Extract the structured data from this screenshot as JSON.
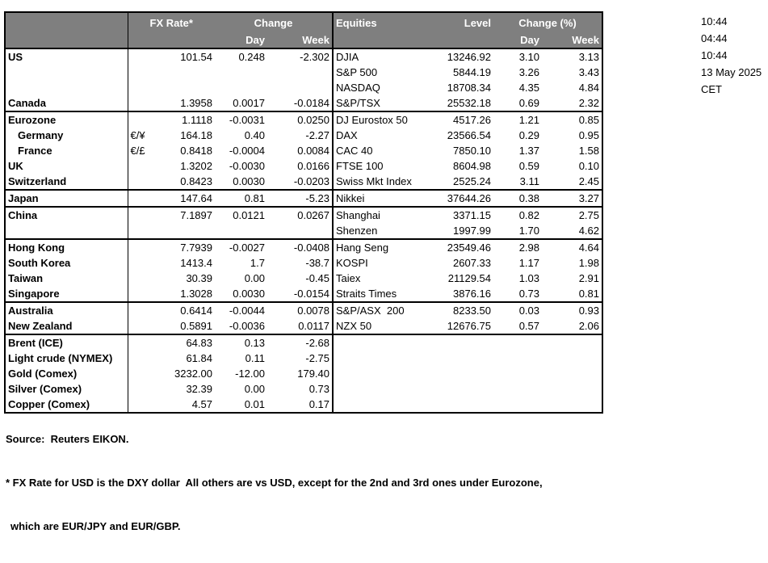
{
  "header": {
    "fx_rate": "FX Rate*",
    "change": "Change",
    "day": "Day",
    "week": "Week",
    "equities": "Equities",
    "level": "Level",
    "change_pct": "Change (%)"
  },
  "colors": {
    "header_bg": "#7f7f7f",
    "header_text": "#ffffff",
    "border": "#000000"
  },
  "rows": [
    {
      "name": "US",
      "sym": "",
      "fx": "101.54",
      "fx_day": "0.248",
      "fx_week": "-2.302",
      "equity": "DJIA",
      "level": "13246.92",
      "eq_day": "3.10",
      "eq_week": "3.13",
      "indent": false,
      "section_end": false
    },
    {
      "name": "",
      "sym": "",
      "fx": "",
      "fx_day": "",
      "fx_week": "",
      "equity": "S&P 500",
      "level": "5844.19",
      "eq_day": "3.26",
      "eq_week": "3.43",
      "indent": false,
      "section_end": false
    },
    {
      "name": "",
      "sym": "",
      "fx": "",
      "fx_day": "",
      "fx_week": "",
      "equity": "NASDAQ",
      "level": "18708.34",
      "eq_day": "4.35",
      "eq_week": "4.84",
      "indent": false,
      "section_end": false
    },
    {
      "name": "Canada",
      "sym": "",
      "fx": "1.3958",
      "fx_day": "0.0017",
      "fx_week": "-0.0184",
      "equity": "S&P/TSX",
      "level": "25532.18",
      "eq_day": "0.69",
      "eq_week": "2.32",
      "indent": false,
      "section_end": true
    },
    {
      "name": "Eurozone",
      "sym": "",
      "fx": "1.1118",
      "fx_day": "-0.0031",
      "fx_week": "0.0250",
      "equity": "DJ Eurostox 50",
      "level": "4517.26",
      "eq_day": "1.21",
      "eq_week": "0.85",
      "indent": false,
      "section_end": false
    },
    {
      "name": "Germany",
      "sym": "€/¥",
      "fx": "164.18",
      "fx_day": "0.40",
      "fx_week": "-2.27",
      "equity": "DAX",
      "level": "23566.54",
      "eq_day": "0.29",
      "eq_week": "0.95",
      "indent": true,
      "section_end": false
    },
    {
      "name": "France",
      "sym": "€/£",
      "fx": "0.8418",
      "fx_day": "-0.0004",
      "fx_week": "0.0084",
      "equity": "CAC 40",
      "level": "7850.10",
      "eq_day": "1.37",
      "eq_week": "1.58",
      "indent": true,
      "section_end": false
    },
    {
      "name": "UK",
      "sym": "",
      "fx": "1.3202",
      "fx_day": "-0.0030",
      "fx_week": "0.0166",
      "equity": "FTSE 100",
      "level": "8604.98",
      "eq_day": "0.59",
      "eq_week": "0.10",
      "indent": false,
      "section_end": false
    },
    {
      "name": "Switzerland",
      "sym": "",
      "fx": "0.8423",
      "fx_day": "0.0030",
      "fx_week": "-0.0203",
      "equity": "Swiss Mkt Index",
      "level": "2525.24",
      "eq_day": "3.11",
      "eq_week": "2.45",
      "indent": false,
      "section_end": true
    },
    {
      "name": "Japan",
      "sym": "",
      "fx": "147.64",
      "fx_day": "0.81",
      "fx_week": "-5.23",
      "equity": "Nikkei",
      "level": "37644.26",
      "eq_day": "0.38",
      "eq_week": "3.27",
      "indent": false,
      "section_end": true
    },
    {
      "name": "China",
      "sym": "",
      "fx": "7.1897",
      "fx_day": "0.0121",
      "fx_week": "0.0267",
      "equity": "Shanghai",
      "level": "3371.15",
      "eq_day": "0.82",
      "eq_week": "2.75",
      "indent": false,
      "section_end": false
    },
    {
      "name": "",
      "sym": "",
      "fx": "",
      "fx_day": "",
      "fx_week": "",
      "equity": "Shenzen",
      "level": "1997.99",
      "eq_day": "1.70",
      "eq_week": "4.62",
      "indent": false,
      "section_end": true
    },
    {
      "name": "Hong Kong",
      "sym": "",
      "fx": "7.7939",
      "fx_day": "-0.0027",
      "fx_week": "-0.0408",
      "equity": "Hang Seng",
      "level": "23549.46",
      "eq_day": "2.98",
      "eq_week": "4.64",
      "indent": false,
      "section_end": false
    },
    {
      "name": "South Korea",
      "sym": "",
      "fx": "1413.4",
      "fx_day": "1.7",
      "fx_week": "-38.7",
      "equity": "KOSPI",
      "level": "2607.33",
      "eq_day": "1.17",
      "eq_week": "1.98",
      "indent": false,
      "section_end": false
    },
    {
      "name": "Taiwan",
      "sym": "",
      "fx": "30.39",
      "fx_day": "0.00",
      "fx_week": "-0.45",
      "equity": "Taiex",
      "level": "21129.54",
      "eq_day": "1.03",
      "eq_week": "2.91",
      "indent": false,
      "section_end": false
    },
    {
      "name": "Singapore",
      "sym": "",
      "fx": "1.3028",
      "fx_day": "0.0030",
      "fx_week": "-0.0154",
      "equity": "Straits Times",
      "level": "3876.16",
      "eq_day": "0.73",
      "eq_week": "0.81",
      "indent": false,
      "section_end": true
    },
    {
      "name": "Australia",
      "sym": "",
      "fx": "0.6414",
      "fx_day": "-0.0044",
      "fx_week": "0.0078",
      "equity": "S&P/ASX  200",
      "level": "8233.50",
      "eq_day": "0.03",
      "eq_week": "0.93",
      "indent": false,
      "section_end": false
    },
    {
      "name": "New Zealand",
      "sym": "",
      "fx": "0.5891",
      "fx_day": "-0.0036",
      "fx_week": "0.0117",
      "equity": "NZX 50",
      "level": "12676.75",
      "eq_day": "0.57",
      "eq_week": "2.06",
      "indent": false,
      "section_end": true
    },
    {
      "name": "Brent (ICE)",
      "sym": "",
      "fx": "64.83",
      "fx_day": "0.13",
      "fx_week": "-2.68",
      "equity": "",
      "level": "",
      "eq_day": "",
      "eq_week": "",
      "indent": false,
      "section_end": false
    },
    {
      "name": "Light crude (NYMEX)",
      "sym": "",
      "fx": "61.84",
      "fx_day": "0.11",
      "fx_week": "-2.75",
      "equity": "",
      "level": "",
      "eq_day": "",
      "eq_week": "",
      "indent": false,
      "section_end": false
    },
    {
      "name": "Gold (Comex)",
      "sym": "",
      "fx": "3232.00",
      "fx_day": "-12.00",
      "fx_week": "179.40",
      "equity": "",
      "level": "",
      "eq_day": "",
      "eq_week": "",
      "indent": false,
      "section_end": false
    },
    {
      "name": "Silver (Comex)",
      "sym": "",
      "fx": "32.39",
      "fx_day": "0.00",
      "fx_week": "0.73",
      "equity": "",
      "level": "",
      "eq_day": "",
      "eq_week": "",
      "indent": false,
      "section_end": false
    },
    {
      "name": "Copper (Comex)",
      "sym": "",
      "fx": "4.57",
      "fx_day": "0.01",
      "fx_week": "0.17",
      "equity": "",
      "level": "",
      "eq_day": "",
      "eq_week": "",
      "indent": false,
      "section_end": false
    }
  ],
  "timestamps": [
    "10:44",
    "04:44",
    "10:44",
    "13 May 2025",
    "CET"
  ],
  "footer": {
    "source": "Source:  Reuters EIKON.",
    "note_line1": "* FX Rate for USD is the DXY dollar  All others are vs USD, except for the 2nd and 3rd ones under Eurozone,",
    "note_line2": "which are EUR/JPY and EUR/GBP."
  }
}
